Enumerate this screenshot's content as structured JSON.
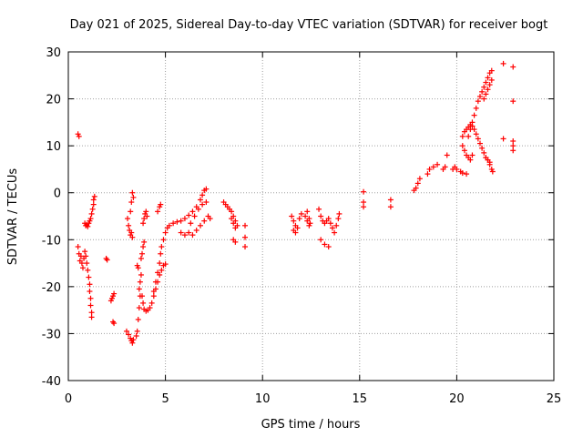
{
  "chart_data": {
    "type": "scatter",
    "title": "Day 021 of 2025, Sidereal Day-to-day VTEC variation (SDTVAR) for receiver bogt",
    "xlabel": "GPS time / hours",
    "ylabel": "SDTVAR / TECUs",
    "xlim": [
      0,
      25
    ],
    "ylim": [
      -40,
      30
    ],
    "xticks": [
      0,
      5,
      10,
      15,
      20,
      25
    ],
    "xtick_labels": [
      "0",
      "5",
      "10",
      "15",
      "20",
      "25"
    ],
    "yticks": [
      -40,
      -30,
      -20,
      -10,
      0,
      10,
      20,
      30
    ],
    "ytick_labels": [
      "-40",
      "-30",
      "-20",
      "-10",
      "0",
      "10",
      "20",
      "30"
    ],
    "grid": true,
    "marker": "+",
    "color": "#ff0000",
    "series": [
      {
        "name": "SDTVAR",
        "points": [
          [
            0.5,
            12.5
          ],
          [
            0.55,
            12.0
          ],
          [
            0.5,
            -11.5
          ],
          [
            0.55,
            -13.0
          ],
          [
            0.6,
            -14.5
          ],
          [
            0.65,
            -13.5
          ],
          [
            0.7,
            -15.0
          ],
          [
            0.75,
            -16.0
          ],
          [
            0.8,
            -14.0
          ],
          [
            0.85,
            -12.5
          ],
          [
            0.9,
            -13.5
          ],
          [
            0.95,
            -15.0
          ],
          [
            1.0,
            -16.5
          ],
          [
            1.05,
            -18.0
          ],
          [
            1.1,
            -19.5
          ],
          [
            1.1,
            -21.0
          ],
          [
            1.15,
            -22.5
          ],
          [
            1.15,
            -24.0
          ],
          [
            1.2,
            -25.5
          ],
          [
            1.2,
            -26.5
          ],
          [
            0.85,
            -6.5
          ],
          [
            0.9,
            -7.0
          ],
          [
            0.95,
            -6.8
          ],
          [
            1.0,
            -7.2
          ],
          [
            1.05,
            -6.5
          ],
          [
            1.1,
            -6.0
          ],
          [
            1.15,
            -5.5
          ],
          [
            1.2,
            -4.5
          ],
          [
            1.25,
            -3.5
          ],
          [
            1.3,
            -2.5
          ],
          [
            1.3,
            -1.5
          ],
          [
            1.35,
            -0.8
          ],
          [
            1.95,
            -14.0
          ],
          [
            2.0,
            -14.3
          ],
          [
            2.2,
            -23.0
          ],
          [
            2.25,
            -22.5
          ],
          [
            2.3,
            -22.0
          ],
          [
            2.35,
            -21.5
          ],
          [
            2.3,
            -27.5
          ],
          [
            2.35,
            -27.8
          ],
          [
            3.0,
            -29.5
          ],
          [
            3.1,
            -30.2
          ],
          [
            3.2,
            -31.0
          ],
          [
            3.25,
            -31.5
          ],
          [
            3.3,
            -32.0
          ],
          [
            3.35,
            -31.3
          ],
          [
            3.1,
            -7.0
          ],
          [
            3.15,
            -8.0
          ],
          [
            3.2,
            -9.0
          ],
          [
            3.25,
            -8.5
          ],
          [
            3.3,
            -9.5
          ],
          [
            3.05,
            -5.5
          ],
          [
            3.2,
            -4.0
          ],
          [
            3.25,
            -2.0
          ],
          [
            3.3,
            0.0
          ],
          [
            3.35,
            -1.0
          ],
          [
            3.5,
            -30.5
          ],
          [
            3.55,
            -29.5
          ],
          [
            3.6,
            -27.0
          ],
          [
            3.65,
            -24.5
          ],
          [
            3.7,
            -22.0
          ],
          [
            3.65,
            -20.5
          ],
          [
            3.7,
            -19.0
          ],
          [
            3.75,
            -17.5
          ],
          [
            3.6,
            -16.0
          ],
          [
            3.55,
            -15.5
          ],
          [
            3.8,
            -22.0
          ],
          [
            3.85,
            -23.5
          ],
          [
            3.9,
            -24.8
          ],
          [
            4.0,
            -25.2
          ],
          [
            4.1,
            -25.0
          ],
          [
            4.2,
            -24.5
          ],
          [
            4.3,
            -23.5
          ],
          [
            4.4,
            -22.0
          ],
          [
            4.5,
            -20.5
          ],
          [
            4.6,
            -19.0
          ],
          [
            4.7,
            -17.5
          ],
          [
            4.8,
            -16.5
          ],
          [
            4.9,
            -15.5
          ],
          [
            5.0,
            -15.2
          ],
          [
            3.75,
            -14.0
          ],
          [
            3.8,
            -13.0
          ],
          [
            3.85,
            -11.5
          ],
          [
            3.9,
            -10.5
          ],
          [
            3.85,
            -6.5
          ],
          [
            3.9,
            -5.5
          ],
          [
            3.95,
            -4.5
          ],
          [
            4.0,
            -4.0
          ],
          [
            4.05,
            -5.0
          ],
          [
            4.4,
            -21.0
          ],
          [
            4.5,
            -19.0
          ],
          [
            4.6,
            -17.0
          ],
          [
            4.7,
            -15.0
          ],
          [
            4.75,
            -13.0
          ],
          [
            4.8,
            -11.5
          ],
          [
            4.9,
            -10.0
          ],
          [
            5.0,
            -8.5
          ],
          [
            5.1,
            -7.5
          ],
          [
            5.2,
            -7.0
          ],
          [
            5.4,
            -6.5
          ],
          [
            5.6,
            -6.2
          ],
          [
            5.8,
            -6.0
          ],
          [
            6.0,
            -5.5
          ],
          [
            6.2,
            -4.8
          ],
          [
            6.4,
            -4.0
          ],
          [
            6.6,
            -3.0
          ],
          [
            6.8,
            -1.5
          ],
          [
            6.9,
            -0.5
          ],
          [
            7.0,
            0.5
          ],
          [
            7.1,
            0.8
          ],
          [
            4.6,
            -4.0
          ],
          [
            4.7,
            -3.0
          ],
          [
            4.75,
            -2.5
          ],
          [
            5.8,
            -8.5
          ],
          [
            6.0,
            -9.0
          ],
          [
            6.2,
            -8.5
          ],
          [
            6.4,
            -9.0
          ],
          [
            6.6,
            -8.0
          ],
          [
            6.8,
            -7.0
          ],
          [
            7.0,
            -6.0
          ],
          [
            7.2,
            -5.0
          ],
          [
            7.3,
            -5.5
          ],
          [
            6.3,
            -6.5
          ],
          [
            6.5,
            -5.0
          ],
          [
            6.7,
            -3.5
          ],
          [
            6.9,
            -2.5
          ],
          [
            7.1,
            -2.0
          ],
          [
            8.0,
            -2.0
          ],
          [
            8.1,
            -2.5
          ],
          [
            8.2,
            -3.0
          ],
          [
            8.3,
            -3.5
          ],
          [
            8.4,
            -4.0
          ],
          [
            8.5,
            -5.0
          ],
          [
            8.6,
            -6.0
          ],
          [
            8.7,
            -7.0
          ],
          [
            8.4,
            -5.5
          ],
          [
            8.5,
            -6.5
          ],
          [
            8.6,
            -7.5
          ],
          [
            8.5,
            -10.0
          ],
          [
            8.6,
            -10.5
          ],
          [
            9.1,
            -7.0
          ],
          [
            9.1,
            -9.5
          ],
          [
            9.1,
            -11.5
          ],
          [
            11.5,
            -5.0
          ],
          [
            11.6,
            -6.0
          ],
          [
            11.7,
            -7.0
          ],
          [
            11.8,
            -7.5
          ],
          [
            11.6,
            -8.0
          ],
          [
            11.7,
            -8.5
          ],
          [
            11.9,
            -5.5
          ],
          [
            12.0,
            -4.5
          ],
          [
            12.2,
            -5.0
          ],
          [
            12.3,
            -6.0
          ],
          [
            12.4,
            -7.0
          ],
          [
            12.3,
            -4.0
          ],
          [
            12.4,
            -5.5
          ],
          [
            12.45,
            -6.5
          ],
          [
            12.9,
            -3.5
          ],
          [
            13.0,
            -5.0
          ],
          [
            13.1,
            -6.0
          ],
          [
            13.2,
            -6.5
          ],
          [
            13.3,
            -6.0
          ],
          [
            13.4,
            -5.5
          ],
          [
            13.5,
            -6.5
          ],
          [
            13.6,
            -7.5
          ],
          [
            13.7,
            -8.5
          ],
          [
            13.8,
            -7.0
          ],
          [
            13.9,
            -5.5
          ],
          [
            13.95,
            -4.5
          ],
          [
            13.0,
            -10.0
          ],
          [
            13.2,
            -11.0
          ],
          [
            13.4,
            -11.5
          ],
          [
            15.2,
            0.2
          ],
          [
            15.2,
            -2.0
          ],
          [
            15.2,
            -3.0
          ],
          [
            16.6,
            -1.5
          ],
          [
            16.6,
            -3.0
          ],
          [
            17.8,
            0.5
          ],
          [
            17.9,
            1.0
          ],
          [
            18.0,
            2.0
          ],
          [
            18.1,
            3.0
          ],
          [
            18.5,
            4.0
          ],
          [
            18.6,
            5.0
          ],
          [
            18.8,
            5.5
          ],
          [
            19.0,
            6.0
          ],
          [
            19.3,
            5.0
          ],
          [
            19.4,
            5.5
          ],
          [
            19.5,
            8.0
          ],
          [
            19.8,
            5.0
          ],
          [
            19.9,
            5.5
          ],
          [
            20.0,
            5.0
          ],
          [
            20.2,
            4.5
          ],
          [
            20.3,
            4.2
          ],
          [
            20.5,
            4.0
          ],
          [
            20.3,
            12.0
          ],
          [
            20.4,
            13.0
          ],
          [
            20.5,
            13.5
          ],
          [
            20.6,
            14.0
          ],
          [
            20.7,
            14.5
          ],
          [
            20.8,
            14.2
          ],
          [
            20.9,
            13.5
          ],
          [
            21.0,
            12.5
          ],
          [
            21.1,
            11.5
          ],
          [
            21.2,
            10.5
          ],
          [
            21.3,
            9.5
          ],
          [
            21.4,
            8.5
          ],
          [
            21.5,
            7.5
          ],
          [
            21.6,
            7.0
          ],
          [
            21.7,
            6.5
          ],
          [
            20.3,
            10.0
          ],
          [
            20.4,
            9.0
          ],
          [
            20.5,
            8.0
          ],
          [
            20.6,
            7.5
          ],
          [
            20.7,
            7.0
          ],
          [
            20.8,
            8.0
          ],
          [
            20.6,
            12.0
          ],
          [
            20.7,
            13.5
          ],
          [
            20.8,
            15.0
          ],
          [
            20.9,
            16.5
          ],
          [
            21.0,
            18.0
          ],
          [
            21.1,
            19.5
          ],
          [
            21.2,
            20.5
          ],
          [
            21.3,
            21.5
          ],
          [
            21.4,
            22.5
          ],
          [
            21.5,
            23.5
          ],
          [
            21.6,
            24.5
          ],
          [
            21.7,
            25.5
          ],
          [
            21.8,
            26.0
          ],
          [
            21.5,
            7.5
          ],
          [
            21.6,
            7.0
          ],
          [
            21.7,
            6.0
          ],
          [
            21.8,
            5.0
          ],
          [
            21.85,
            4.5
          ],
          [
            21.4,
            20.0
          ],
          [
            21.5,
            21.0
          ],
          [
            21.6,
            22.0
          ],
          [
            21.7,
            23.0
          ],
          [
            21.8,
            24.0
          ],
          [
            22.4,
            27.5
          ],
          [
            22.4,
            11.5
          ],
          [
            22.9,
            26.8
          ],
          [
            22.9,
            19.5
          ],
          [
            22.9,
            11.0
          ],
          [
            22.9,
            10.0
          ],
          [
            22.9,
            9.0
          ]
        ]
      }
    ]
  }
}
